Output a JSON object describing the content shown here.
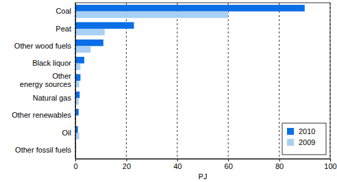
{
  "chart_data": {
    "type": "bar",
    "orientation": "horizontal",
    "categories": [
      "Coal",
      "Peat",
      "Other wood fuels",
      "Black liquor",
      "Other energy sources",
      "Natural gas",
      "Other renewables",
      "Oil",
      "Other fossil fuels"
    ],
    "series": [
      {
        "name": "2010",
        "color": "#0a6fe6",
        "values": [
          90,
          23,
          11,
          3.5,
          2,
          1.7,
          1.3,
          1,
          0.3
        ]
      },
      {
        "name": "2009",
        "color": "#a8d0f5",
        "values": [
          60,
          11.5,
          6,
          2,
          1.5,
          1.3,
          0.3,
          1.5,
          0.2
        ]
      }
    ],
    "x_label": "PJ",
    "xlim": [
      0,
      100
    ],
    "xticks": [
      0,
      20,
      40,
      60,
      80,
      100
    ],
    "grid": true,
    "legend": "lower right"
  }
}
